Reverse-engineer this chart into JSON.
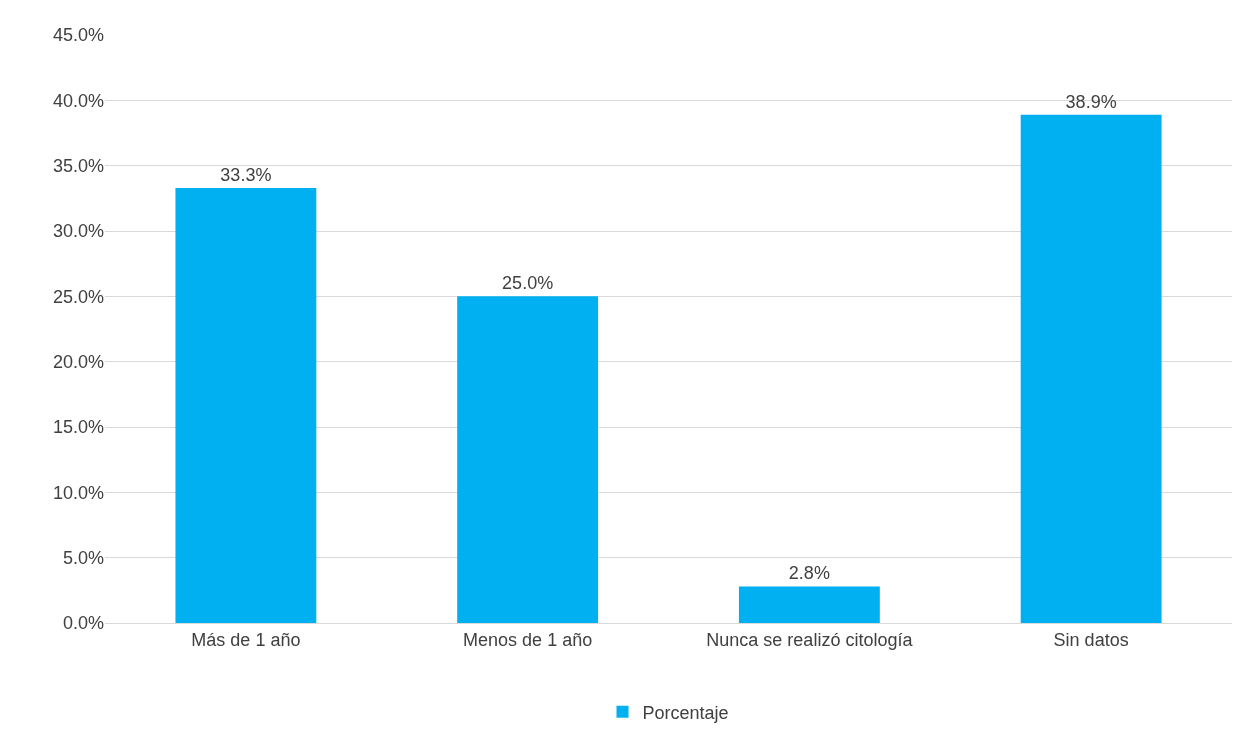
{
  "chart_data": {
    "type": "bar",
    "categories": [
      "Más de 1 año",
      "Menos de 1 año",
      "Nunca se realizó citología",
      "Sin datos"
    ],
    "series": [
      {
        "name": "Porcentaje",
        "color": "#00b0f0",
        "values": [
          33.3,
          25.0,
          2.8,
          38.9
        ],
        "value_labels": [
          "33.3%",
          "25.0%",
          "2.8%",
          "38.9%"
        ]
      }
    ],
    "ylim": [
      0,
      45
    ],
    "yticks": [
      {
        "value": 0,
        "label": "0.0%"
      },
      {
        "value": 5,
        "label": "5.0%"
      },
      {
        "value": 10,
        "label": "10.0%"
      },
      {
        "value": 15,
        "label": "15.0%"
      },
      {
        "value": 20,
        "label": "20.0%"
      },
      {
        "value": 25,
        "label": "25.0%"
      },
      {
        "value": 30,
        "label": "30.0%"
      },
      {
        "value": 35,
        "label": "35.0%"
      },
      {
        "value": 40,
        "label": "40.0%"
      },
      {
        "value": 45,
        "label": "45.0%"
      }
    ],
    "grid": "y",
    "legend": "bottom"
  }
}
